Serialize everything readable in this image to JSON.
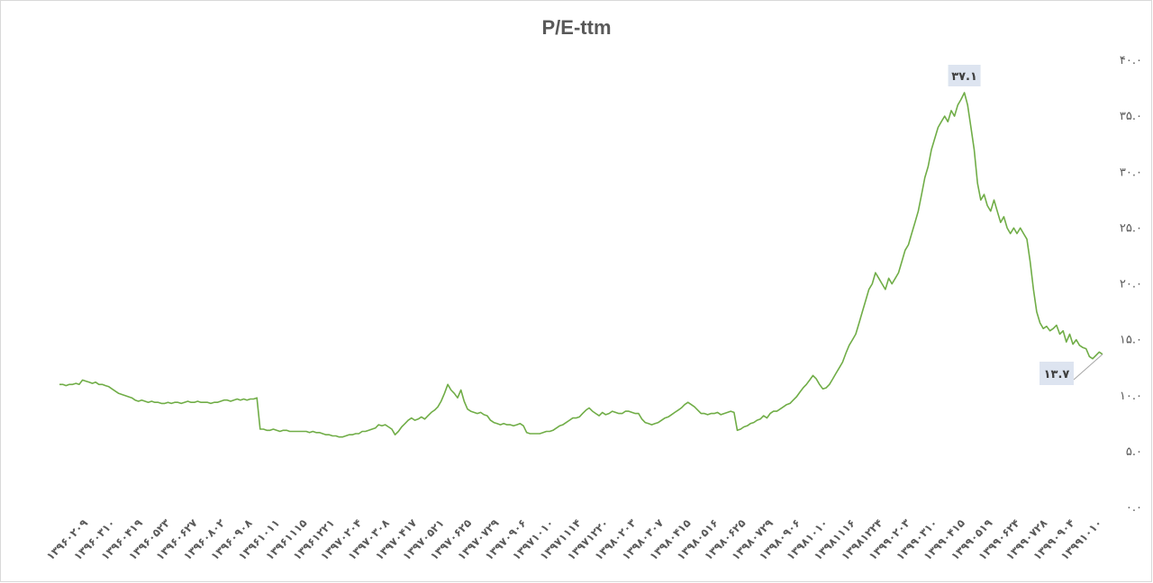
{
  "chart_data": {
    "type": "line",
    "title": "P/E-ttm",
    "ylim": [
      0,
      40
    ],
    "y_ticks": [
      "۰.۰",
      "۵.۰",
      "۱۰.۰",
      "۱۵.۰",
      "۲۰.۰",
      "۲۵.۰",
      "۳۰.۰",
      "۳۵.۰",
      "۴۰.۰"
    ],
    "x_tick_labels": [
      "۱۳۹۶۰۲۰۹",
      "۱۳۹۶۰۳۱۰",
      "۱۳۹۶۰۴۱۹",
      "۱۳۹۶۰۵۲۳",
      "۱۳۹۶۰۶۲۷",
      "۱۳۹۶۰۸۰۲",
      "۱۳۹۶۰۹۰۸",
      "۱۳۹۶۱۰۱۱",
      "۱۳۹۶۱۱۱۵",
      "۱۳۹۶۱۲۲۱",
      "۱۳۹۷۰۲۰۴",
      "۱۳۹۷۰۳۰۸",
      "۱۳۹۷۰۴۱۷",
      "۱۳۹۷۰۵۲۱",
      "۱۳۹۷۰۶۲۵",
      "۱۳۹۷۰۷۲۹",
      "۱۳۹۷۰۹۰۶",
      "۱۳۹۷۱۰۱۰",
      "۱۳۹۷۱۱۱۴",
      "۱۳۹۷۱۲۲۰",
      "۱۳۹۸۰۲۰۳",
      "۱۳۹۸۰۳۰۷",
      "۱۳۹۸۰۴۱۵",
      "۱۳۹۸۰۵۱۶",
      "۱۳۹۸۰۶۲۵",
      "۱۳۹۸۰۷۲۹",
      "۱۳۹۸۰۹۰۶",
      "۱۳۹۸۱۰۱۰",
      "۱۳۹۸۱۱۱۶",
      "۱۳۹۸۱۲۲۴",
      "۱۳۹۹۰۲۰۳",
      "۱۳۹۹۰۳۱۰",
      "۱۳۹۹۰۴۱۵",
      "۱۳۹۹۰۵۱۹",
      "۱۳۹۹۰۶۲۴",
      "۱۳۹۹۰۷۲۸",
      "۱۳۹۹۰۹۰۴",
      "۱۳۹۹۱۰۱۰"
    ],
    "series": [
      {
        "color": "#70ad47",
        "values": [
          11.0,
          11.0,
          10.9,
          11.0,
          11.0,
          11.1,
          11.0,
          11.4,
          11.3,
          11.2,
          11.1,
          11.2,
          11.0,
          11.0,
          10.9,
          10.8,
          10.6,
          10.4,
          10.2,
          10.1,
          10.0,
          9.9,
          9.8,
          9.6,
          9.5,
          9.6,
          9.5,
          9.4,
          9.5,
          9.4,
          9.4,
          9.3,
          9.3,
          9.4,
          9.3,
          9.4,
          9.4,
          9.3,
          9.4,
          9.5,
          9.4,
          9.4,
          9.5,
          9.4,
          9.4,
          9.4,
          9.3,
          9.4,
          9.4,
          9.5,
          9.6,
          9.6,
          9.5,
          9.6,
          9.7,
          9.6,
          9.7,
          9.6,
          9.7,
          9.7,
          9.8,
          7.0,
          7.0,
          6.9,
          6.9,
          7.0,
          6.9,
          6.8,
          6.9,
          6.9,
          6.8,
          6.8,
          6.8,
          6.8,
          6.8,
          6.8,
          6.7,
          6.8,
          6.7,
          6.7,
          6.6,
          6.5,
          6.5,
          6.4,
          6.4,
          6.3,
          6.3,
          6.4,
          6.5,
          6.5,
          6.6,
          6.6,
          6.8,
          6.8,
          6.9,
          7.0,
          7.1,
          7.4,
          7.3,
          7.4,
          7.2,
          7.0,
          6.5,
          6.8,
          7.2,
          7.5,
          7.8,
          8.0,
          7.8,
          7.9,
          8.1,
          7.9,
          8.2,
          8.5,
          8.7,
          9.0,
          9.5,
          10.2,
          11.0,
          10.5,
          10.2,
          9.8,
          10.5,
          9.5,
          8.8,
          8.6,
          8.5,
          8.4,
          8.5,
          8.3,
          8.2,
          7.8,
          7.6,
          7.5,
          7.4,
          7.5,
          7.4,
          7.4,
          7.3,
          7.4,
          7.5,
          7.3,
          6.7,
          6.6,
          6.6,
          6.6,
          6.6,
          6.7,
          6.8,
          6.8,
          6.9,
          7.1,
          7.3,
          7.4,
          7.6,
          7.8,
          8.0,
          8.0,
          8.1,
          8.4,
          8.7,
          8.9,
          8.6,
          8.4,
          8.2,
          8.5,
          8.3,
          8.4,
          8.6,
          8.5,
          8.4,
          8.4,
          8.6,
          8.6,
          8.5,
          8.4,
          8.4,
          7.9,
          7.6,
          7.5,
          7.4,
          7.5,
          7.6,
          7.8,
          8.0,
          8.1,
          8.3,
          8.5,
          8.7,
          8.9,
          9.2,
          9.4,
          9.2,
          9.0,
          8.7,
          8.4,
          8.4,
          8.3,
          8.4,
          8.4,
          8.5,
          8.3,
          8.4,
          8.5,
          8.6,
          8.5,
          6.9,
          7.0,
          7.2,
          7.3,
          7.5,
          7.6,
          7.8,
          7.9,
          8.2,
          8.0,
          8.4,
          8.6,
          8.6,
          8.8,
          9.0,
          9.2,
          9.3,
          9.6,
          9.9,
          10.3,
          10.7,
          11.0,
          11.4,
          11.8,
          11.5,
          11.0,
          10.6,
          10.7,
          11.0,
          11.5,
          12.0,
          12.5,
          13.0,
          13.8,
          14.5,
          15.0,
          15.5,
          16.5,
          17.5,
          18.5,
          19.5,
          20.0,
          21.0,
          20.5,
          20.0,
          19.5,
          20.5,
          20.0,
          20.5,
          21.0,
          22.0,
          23.0,
          23.5,
          24.5,
          25.5,
          26.5,
          28.0,
          29.5,
          30.5,
          32.0,
          33.0,
          34.0,
          34.5,
          35.0,
          34.5,
          35.5,
          35.0,
          36.0,
          36.5,
          37.1,
          36.0,
          34.0,
          32.0,
          29.0,
          27.5,
          28.0,
          27.0,
          26.5,
          27.5,
          26.5,
          25.5,
          26.0,
          25.0,
          24.5,
          25.0,
          24.5,
          25.0,
          24.5,
          24.0,
          22.0,
          19.5,
          17.5,
          16.5,
          16.0,
          16.2,
          15.8,
          16.0,
          16.3,
          15.5,
          15.8,
          14.8,
          15.5,
          14.6,
          15.0,
          14.5,
          14.3,
          14.2,
          13.5,
          13.3,
          13.6,
          13.9,
          13.7
        ]
      }
    ],
    "annotations": [
      {
        "label": "۳۷.۱",
        "value": 37.1
      },
      {
        "label": "۱۳.۷",
        "value": 13.7
      }
    ]
  }
}
